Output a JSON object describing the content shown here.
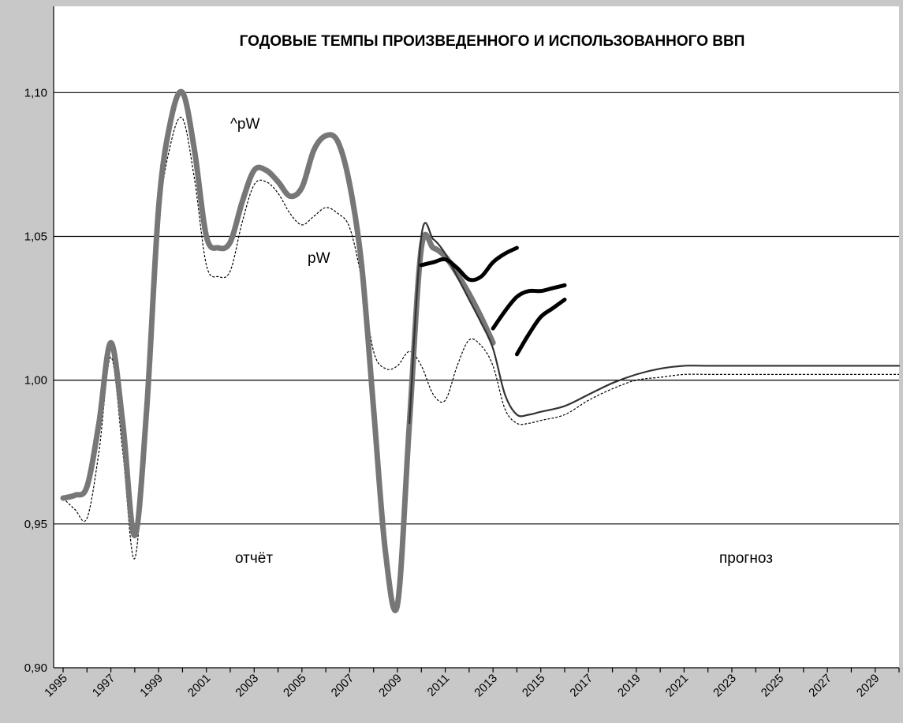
{
  "chart_data": {
    "type": "line",
    "title": "ГОДОВЫЕ ТЕМПЫ ПРОИЗВЕДЕННОГО И ИСПОЛЬЗОВАННОГО ВВП",
    "xlabel": "",
    "ylabel": "",
    "xlim": [
      1995,
      2030
    ],
    "ylim": [
      0.9,
      1.13
    ],
    "y_ticks": [
      "0,90",
      "0,95",
      "1,00",
      "1,05",
      "1,10"
    ],
    "x_ticks": [
      "1995",
      "1997",
      "1999",
      "2001",
      "2003",
      "2005",
      "2007",
      "2009",
      "2011",
      "2013",
      "2015",
      "2017",
      "2019",
      "2021",
      "2023",
      "2025",
      "2027",
      "2029"
    ],
    "grid": "horizontal",
    "annotations": {
      "hat_pw": "^pW",
      "pw": "pW",
      "report": "отчёт",
      "forecast": "прогноз"
    },
    "series": [
      {
        "key": "hatpw_thick",
        "color": "#777777",
        "x": [
          1995,
          1995.5,
          1996,
          1996.5,
          1997,
          1997.5,
          1998,
          1998.5,
          1999,
          1999.5,
          2000,
          2000.5,
          2001,
          2001.5,
          2002,
          2002.5,
          2003,
          2003.5,
          2004,
          2004.5,
          2005,
          2005.5,
          2006,
          2006.5,
          2007,
          2007.5,
          2008,
          2008.5,
          2009,
          2009.5,
          2010,
          2010.5,
          2011,
          2011.5,
          2012,
          2012.5,
          2013
        ],
        "y": [
          0.959,
          0.96,
          0.963,
          0.985,
          1.013,
          0.985,
          0.946,
          0.99,
          1.06,
          1.09,
          1.1,
          1.08,
          1.05,
          1.046,
          1.048,
          1.062,
          1.073,
          1.073,
          1.069,
          1.064,
          1.067,
          1.08,
          1.085,
          1.083,
          1.068,
          1.04,
          0.99,
          0.94,
          0.922,
          0.985,
          1.046,
          1.046,
          1.043,
          1.037,
          1.03,
          1.022,
          1.013
        ]
      },
      {
        "key": "pw_dashed",
        "color": "#000000",
        "x": [
          1995,
          1995.5,
          1996,
          1996.5,
          1997,
          1997.5,
          1998,
          1998.5,
          1999,
          1999.5,
          2000,
          2000.5,
          2001,
          2001.5,
          2002,
          2002.5,
          2003,
          2003.5,
          2004,
          2004.5,
          2005,
          2005.5,
          2006,
          2006.5,
          2007,
          2007.5,
          2008,
          2008.5,
          2009,
          2009.5,
          2010,
          2010.5,
          2011,
          2011.5,
          2012,
          2012.5,
          2013,
          2013.5,
          2014,
          2014.5,
          2015,
          2016,
          2017,
          2018,
          2019,
          2020,
          2021,
          2022,
          2023,
          2024,
          2025,
          2026,
          2027,
          2028,
          2029,
          2030
        ],
        "y": [
          0.959,
          0.955,
          0.952,
          0.975,
          1.008,
          0.975,
          0.938,
          0.99,
          1.055,
          1.082,
          1.091,
          1.07,
          1.04,
          1.036,
          1.038,
          1.055,
          1.068,
          1.069,
          1.065,
          1.058,
          1.054,
          1.057,
          1.06,
          1.058,
          1.053,
          1.035,
          1.01,
          1.004,
          1.005,
          1.01,
          1.005,
          0.995,
          0.993,
          1.005,
          1.014,
          1.012,
          1.005,
          0.99,
          0.985,
          0.985,
          0.986,
          0.988,
          0.993,
          0.997,
          1.0,
          1.001,
          1.002,
          1.002,
          1.002,
          1.002,
          1.002,
          1.002,
          1.002,
          1.002,
          1.002,
          1.002
        ]
      },
      {
        "key": "pw_solid",
        "color": "#333333",
        "x": [
          2009.5,
          2010,
          2010.5,
          2011,
          2011.5,
          2012,
          2012.5,
          2013,
          2013.5,
          2014,
          2014.5,
          2015,
          2016,
          2017,
          2018,
          2019,
          2020,
          2021,
          2022,
          2023,
          2024,
          2025,
          2026,
          2027,
          2028,
          2029,
          2030
        ],
        "y": [
          0.985,
          1.05,
          1.049,
          1.044,
          1.036,
          1.028,
          1.02,
          1.011,
          0.995,
          0.988,
          0.988,
          0.989,
          0.991,
          0.995,
          0.999,
          1.002,
          1.004,
          1.005,
          1.005,
          1.005,
          1.005,
          1.005,
          1.005,
          1.005,
          1.005,
          1.005,
          1.005
        ]
      },
      {
        "key": "forecast_1",
        "color": "#000000",
        "x": [
          2010,
          2010.5,
          2011,
          2011.5,
          2012,
          2012.5,
          2013,
          2013.5,
          2014
        ],
        "y": [
          1.04,
          1.041,
          1.042,
          1.039,
          1.035,
          1.036,
          1.041,
          1.044,
          1.046
        ]
      },
      {
        "key": "forecast_2",
        "color": "#000000",
        "x": [
          2013,
          2013.5,
          2014,
          2014.5,
          2015,
          2015.5,
          2016
        ],
        "y": [
          1.018,
          1.024,
          1.029,
          1.031,
          1.031,
          1.032,
          1.033
        ]
      },
      {
        "key": "forecast_3",
        "color": "#000000",
        "x": [
          2014,
          2014.5,
          2015,
          2015.5,
          2016
        ],
        "y": [
          1.009,
          1.016,
          1.022,
          1.025,
          1.028
        ]
      }
    ]
  }
}
